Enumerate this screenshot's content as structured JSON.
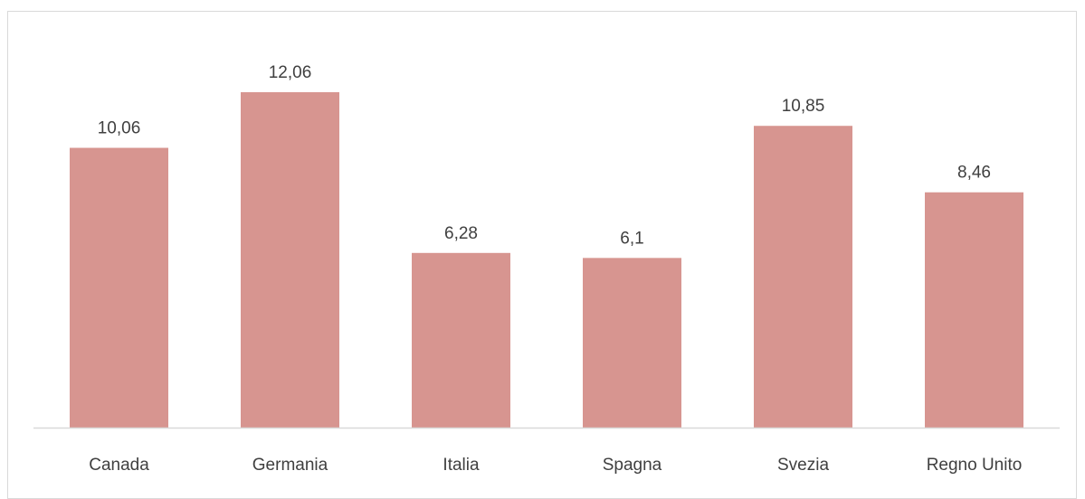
{
  "chart_data": {
    "type": "bar",
    "title": "",
    "xlabel": "",
    "ylabel": "",
    "categories": [
      "Canada",
      "Germania",
      "Italia",
      "Spagna",
      "Svezia",
      "Regno Unito"
    ],
    "values": [
      10.06,
      12.06,
      6.28,
      6.1,
      10.85,
      8.46
    ],
    "value_labels": [
      "10,06",
      "12,06",
      "6,28",
      "6,1",
      "10,85",
      "8,46"
    ],
    "ylim": [
      0,
      14
    ],
    "grid": false,
    "legend": "none",
    "bar_color": "#d79590",
    "axis_color": "#d9d9d9",
    "label_color": "#404040"
  }
}
